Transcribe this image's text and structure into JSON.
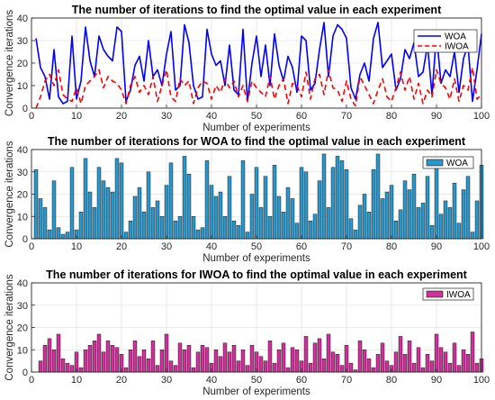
{
  "colors": {
    "woa": "#0000ff",
    "iwoa": "#ff0000",
    "woa_bar": "#2d96c8",
    "iwoa_bar": "#cc3399",
    "grid": "#e4e4e4",
    "axis": "#262626"
  },
  "chart_data": [
    {
      "type": "line",
      "title": "The number of iterations to find the optimal value in each experiment",
      "xlabel": "Number of experiments",
      "ylabel": "Convergence iterations",
      "xlim": [
        0,
        100
      ],
      "ylim": [
        0,
        40
      ],
      "xticks": [
        "0",
        "10",
        "20",
        "30",
        "40",
        "50",
        "60",
        "70",
        "80",
        "90",
        "100"
      ],
      "yticks": [
        "0",
        "10",
        "20",
        "30",
        "40"
      ],
      "grid": true,
      "legend_position": "top-right",
      "x": [
        1,
        2,
        3,
        4,
        5,
        6,
        7,
        8,
        9,
        10,
        11,
        12,
        13,
        14,
        15,
        16,
        17,
        18,
        19,
        20,
        21,
        22,
        23,
        24,
        25,
        26,
        27,
        28,
        29,
        30,
        31,
        32,
        33,
        34,
        35,
        36,
        37,
        38,
        39,
        40,
        41,
        42,
        43,
        44,
        45,
        46,
        47,
        48,
        49,
        50,
        51,
        52,
        53,
        54,
        55,
        56,
        57,
        58,
        59,
        60,
        61,
        62,
        63,
        64,
        65,
        66,
        67,
        68,
        69,
        70,
        71,
        72,
        73,
        74,
        75,
        76,
        77,
        78,
        79,
        80,
        81,
        82,
        83,
        84,
        85,
        86,
        87,
        88,
        89,
        90,
        91,
        92,
        93,
        94,
        95,
        96,
        97,
        98,
        99,
        100
      ],
      "series": [
        {
          "name": "WOA",
          "style": "solid",
          "values": [
            31,
            18,
            14,
            4,
            26,
            5,
            2,
            3,
            32,
            4,
            12,
            36,
            21,
            14,
            32,
            26,
            23,
            21,
            36,
            34,
            3,
            8,
            19,
            23,
            12,
            30,
            14,
            17,
            10,
            24,
            34,
            8,
            10,
            37,
            29,
            10,
            4,
            5,
            35,
            24,
            19,
            21,
            10,
            28,
            8,
            6,
            35,
            3,
            20,
            32,
            14,
            28,
            10,
            33,
            19,
            12,
            23,
            18,
            7,
            32,
            30,
            8,
            11,
            26,
            38,
            14,
            32,
            37,
            35,
            31,
            9,
            4,
            15,
            20,
            12,
            31,
            38,
            18,
            21,
            24,
            8,
            13,
            26,
            22,
            29,
            14,
            16,
            28,
            6,
            33,
            11,
            17,
            14,
            25,
            7,
            22,
            28,
            3,
            17,
            33
          ]
        },
        {
          "name": "IWOA",
          "style": "dashed",
          "values": [
            0,
            5,
            12,
            15,
            10,
            17,
            6,
            4,
            3,
            9,
            2,
            10,
            12,
            14,
            17,
            9,
            14,
            12,
            11,
            8,
            2,
            10,
            14,
            7,
            10,
            6,
            14,
            3,
            10,
            17,
            5,
            3,
            13,
            10,
            12,
            2,
            9,
            12,
            11,
            4,
            10,
            7,
            13,
            9,
            12,
            5,
            10,
            3,
            12,
            9,
            7,
            5,
            14,
            4,
            10,
            13,
            2,
            11,
            10,
            5,
            16,
            4,
            13,
            15,
            6,
            17,
            9,
            8,
            3,
            12,
            4,
            1,
            14,
            10,
            6,
            2,
            8,
            13,
            5,
            3,
            9,
            16,
            8,
            14,
            4,
            11,
            2,
            8,
            5,
            17,
            11,
            9,
            4,
            13,
            3,
            10,
            8,
            18,
            4,
            6
          ]
        }
      ]
    },
    {
      "type": "bar",
      "title": "The number of iterations for WOA to find the optimal value in each experiment",
      "xlabel": "Number of experiments",
      "ylabel": "Convergence iterations",
      "xlim": [
        0,
        100
      ],
      "ylim": [
        0,
        40
      ],
      "xticks": [
        "0",
        "10",
        "20",
        "30",
        "40",
        "50",
        "60",
        "70",
        "80",
        "90",
        "100"
      ],
      "yticks": [
        "0",
        "10",
        "20",
        "30",
        "40"
      ],
      "grid": true,
      "legend_position": "top-right",
      "series": [
        {
          "name": "WOA",
          "values": [
            31,
            18,
            14,
            4,
            26,
            5,
            2,
            3,
            32,
            4,
            12,
            36,
            21,
            14,
            32,
            26,
            23,
            21,
            36,
            34,
            3,
            8,
            19,
            23,
            12,
            30,
            14,
            17,
            10,
            24,
            34,
            8,
            10,
            37,
            29,
            10,
            4,
            5,
            35,
            24,
            19,
            21,
            10,
            28,
            8,
            6,
            35,
            3,
            20,
            32,
            14,
            28,
            10,
            33,
            19,
            12,
            23,
            18,
            7,
            32,
            30,
            8,
            11,
            26,
            38,
            14,
            32,
            37,
            35,
            31,
            9,
            4,
            15,
            20,
            12,
            31,
            38,
            18,
            21,
            24,
            8,
            13,
            26,
            22,
            29,
            14,
            16,
            28,
            6,
            33,
            11,
            17,
            14,
            25,
            7,
            22,
            28,
            3,
            17,
            33
          ]
        }
      ]
    },
    {
      "type": "bar",
      "title": "The number of iterations for IWOA to find the optimal value in each experiment",
      "xlabel": "Number of experiments",
      "ylabel": "Convergence iterations",
      "xlim": [
        0,
        100
      ],
      "ylim": [
        0,
        40
      ],
      "xticks": [
        "0",
        "10",
        "20",
        "30",
        "40",
        "50",
        "60",
        "70",
        "80",
        "90",
        "100"
      ],
      "yticks": [
        "0",
        "10",
        "20",
        "30",
        "40"
      ],
      "grid": true,
      "legend_position": "top-right",
      "series": [
        {
          "name": "IWOA",
          "values": [
            0,
            5,
            12,
            15,
            10,
            17,
            6,
            4,
            3,
            9,
            2,
            10,
            12,
            14,
            17,
            9,
            14,
            12,
            11,
            8,
            2,
            10,
            14,
            7,
            10,
            6,
            14,
            3,
            10,
            17,
            5,
            3,
            13,
            10,
            12,
            2,
            9,
            12,
            11,
            4,
            10,
            7,
            13,
            9,
            12,
            5,
            10,
            3,
            12,
            9,
            7,
            5,
            14,
            4,
            10,
            13,
            2,
            11,
            10,
            5,
            16,
            4,
            13,
            15,
            6,
            17,
            9,
            8,
            3,
            12,
            4,
            1,
            14,
            10,
            6,
            2,
            8,
            13,
            5,
            3,
            9,
            16,
            8,
            14,
            4,
            11,
            2,
            8,
            5,
            17,
            11,
            9,
            4,
            13,
            3,
            10,
            8,
            18,
            4,
            6
          ]
        }
      ]
    }
  ]
}
